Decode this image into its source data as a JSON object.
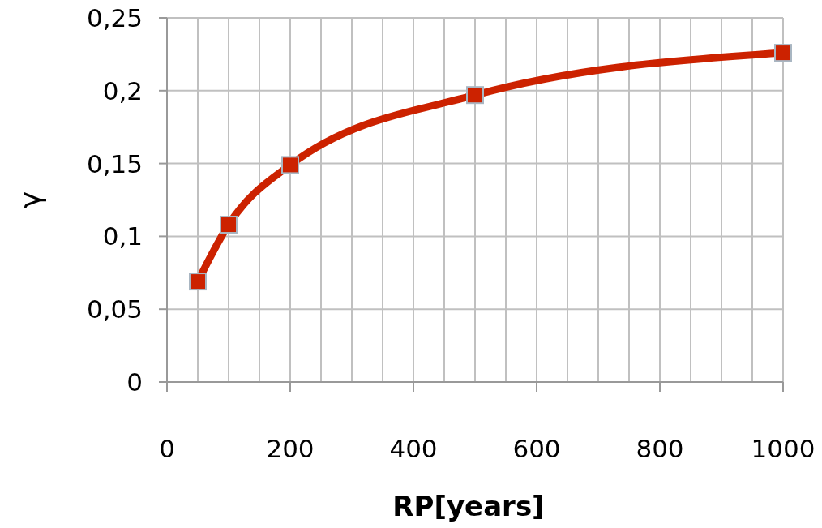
{
  "chart_data": {
    "type": "line",
    "xlabel": "RP[years]",
    "ylabel": "γ",
    "x": [
      50,
      100,
      200,
      500,
      1000
    ],
    "series": [
      {
        "color": "#cc2200",
        "values": [
          0.069,
          0.108,
          0.149,
          0.197,
          0.226
        ]
      }
    ],
    "xlim": [
      0,
      1000
    ],
    "xticks": [
      0,
      {
        "value": 50,
        "label": null
      },
      {
        "value": 100,
        "label": null
      },
      {
        "value": 150,
        "label": null
      },
      200,
      {
        "value": 250,
        "label": null
      },
      {
        "value": 300,
        "label": null
      },
      {
        "value": 350,
        "label": null
      },
      400,
      {
        "value": 450,
        "label": null
      },
      {
        "value": 500,
        "label": null
      },
      {
        "value": 550,
        "label": null
      },
      600,
      {
        "value": 650,
        "label": null
      },
      {
        "value": 700,
        "label": null
      },
      {
        "value": 750,
        "label": null
      },
      800,
      {
        "value": 850,
        "label": null
      },
      {
        "value": 900,
        "label": null
      },
      {
        "value": 950,
        "label": null
      },
      1000
    ],
    "ylim": [
      0,
      0.25
    ],
    "yticks": [
      0,
      {
        "value": 0.05,
        "label": "0,05"
      },
      {
        "value": 0.1,
        "label": "0,1"
      },
      {
        "value": 0.15,
        "label": "0,15"
      },
      {
        "value": 0.2,
        "label": "0,2"
      },
      {
        "value": 0.25,
        "label": "0,25"
      }
    ],
    "grid": true,
    "marker": "square",
    "line_style": "solid"
  }
}
